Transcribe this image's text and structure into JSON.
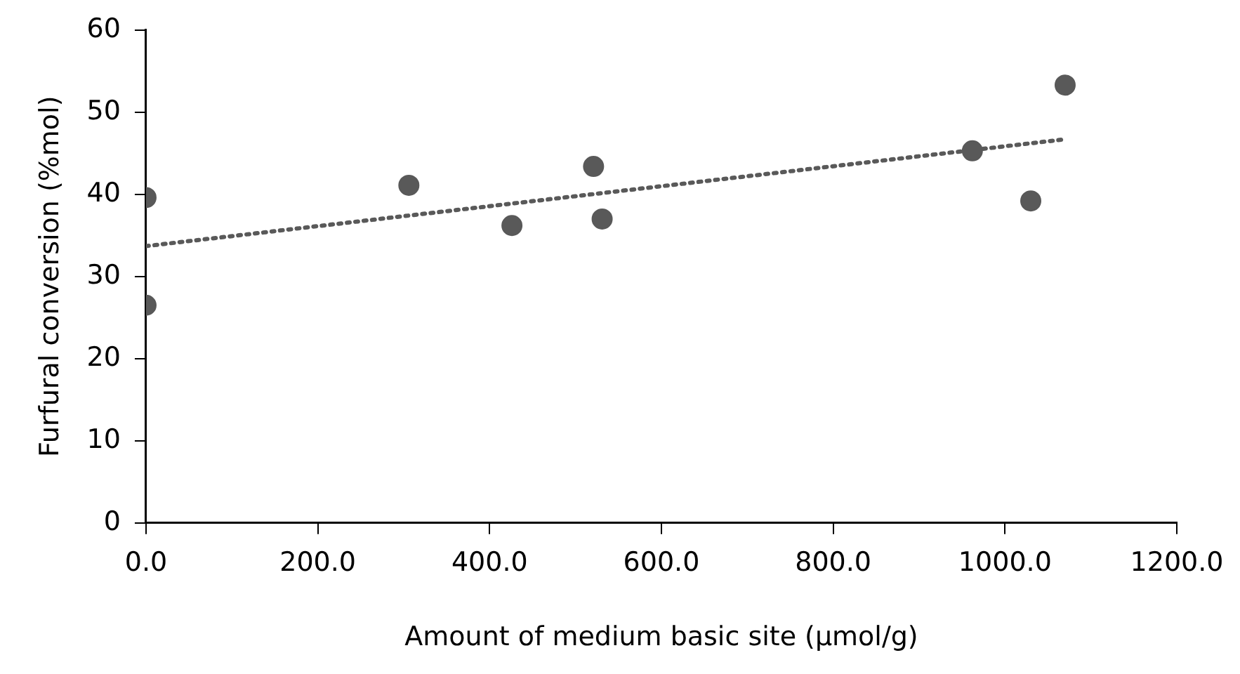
{
  "chart_data": {
    "type": "scatter",
    "xlabel": "Amount of medium basic site (µmol/g)",
    "ylabel": "Furfural conversion (%mol)",
    "x": [
      0,
      0,
      306,
      426,
      521,
      531,
      962,
      1030,
      1070
    ],
    "series": [
      {
        "color": "#595959",
        "values": [
          39.6,
          26.5,
          41.1,
          36.2,
          43.4,
          37.0,
          45.3,
          39.2,
          53.3
        ],
        "marker": "circle"
      },
      {
        "type": "line",
        "color": "#595959",
        "x": [
          0,
          1070
        ],
        "values": [
          33.7,
          46.7
        ],
        "line_style": "dotted",
        "marker": "none"
      }
    ],
    "xlim": [
      0,
      1200
    ],
    "xticks": [
      {
        "value": 0,
        "label": "0.0"
      },
      {
        "value": 200,
        "label": "200.0"
      },
      {
        "value": 400,
        "label": "400.0"
      },
      {
        "value": 600,
        "label": "600.0"
      },
      {
        "value": 800,
        "label": "800.0"
      },
      {
        "value": 1000,
        "label": "1000.0"
      },
      {
        "value": 1200,
        "label": "1200.0"
      }
    ],
    "ylim": [
      0,
      60
    ],
    "yticks": [
      0,
      10,
      20,
      30,
      40,
      50,
      60
    ],
    "grid": false,
    "legend": false
  }
}
